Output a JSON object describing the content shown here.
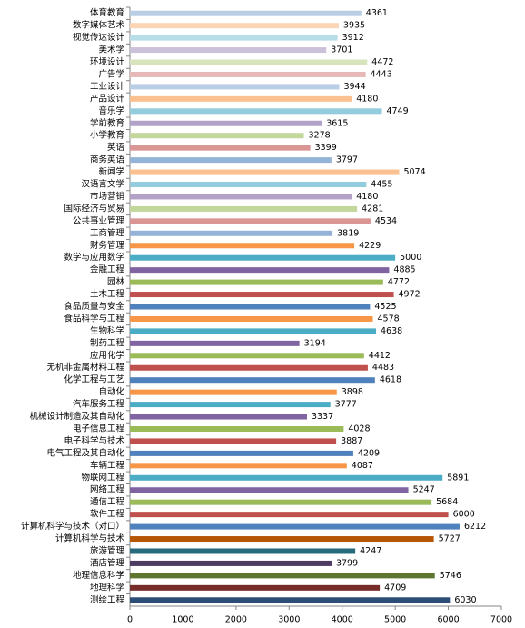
{
  "chart_data": {
    "type": "barh",
    "categories": [
      "体育教育",
      "数字媒体艺术",
      "视觉传达设计",
      "美术学",
      "环境设计",
      "广告学",
      "工业设计",
      "产品设计",
      "音乐学",
      "学前教育",
      "小学教育",
      "英语",
      "商务英语",
      "新闻学",
      "汉语言文学",
      "市场营销",
      "国际经济与贸易",
      "公共事业管理",
      "工商管理",
      "财务管理",
      "数学与应用数学",
      "金融工程",
      "园林",
      "土木工程",
      "食品质量与安全",
      "食品科学与工程",
      "生物科学",
      "制药工程",
      "应用化学",
      "无机非金属材料工程",
      "化学工程与工艺",
      "自动化",
      "汽车服务工程",
      "机械设计制造及其自动化",
      "电子信息工程",
      "电子科学与技术",
      "电气工程及其自动化",
      "车辆工程",
      "物联网工程",
      "网络工程",
      "通信工程",
      "软件工程",
      "计算机科学与技术（对口）",
      "计算机科学与技术",
      "旅游管理",
      "酒店管理",
      "地理信息科学",
      "地理科学",
      "测绘工程"
    ],
    "values": [
      4361,
      3935,
      3912,
      3701,
      4472,
      4443,
      3944,
      4180,
      4749,
      3615,
      3278,
      3399,
      3797,
      5074,
      4455,
      4180,
      4281,
      4534,
      3819,
      4229,
      5000,
      4885,
      4772,
      4972,
      4525,
      4578,
      4638,
      3194,
      4412,
      4483,
      4618,
      3898,
      3777,
      3337,
      4028,
      3887,
      4209,
      4087,
      5891,
      5247,
      5684,
      6000,
      6212,
      5727,
      4247,
      3799,
      5746,
      4709,
      6030
    ],
    "colors": [
      "#b9cde5",
      "#fcd5b5",
      "#b7dee8",
      "#ccc1da",
      "#d7e4bd",
      "#e6b9b8",
      "#b9cde5",
      "#fac090",
      "#93cddd",
      "#b3a2c7",
      "#c3d69b",
      "#d99694",
      "#95b3d7",
      "#fac090",
      "#93cddd",
      "#b3a2c7",
      "#c3d69b",
      "#d99694",
      "#95b3d7",
      "#f79646",
      "#4bacc6",
      "#8064a2",
      "#9bbb59",
      "#c0504d",
      "#4f81bd",
      "#f79646",
      "#4bacc6",
      "#8064a2",
      "#9bbb59",
      "#c0504d",
      "#4f81bd",
      "#f79646",
      "#4bacc6",
      "#8064a2",
      "#9bbb59",
      "#c0504d",
      "#4f81bd",
      "#f79646",
      "#4bacc6",
      "#8064a2",
      "#9bbb59",
      "#c0504d",
      "#4f81bd",
      "#b65708",
      "#276a7c",
      "#4d3b62",
      "#5f7530",
      "#772c2a",
      "#2c4d75"
    ],
    "xlim": [
      0,
      7000
    ],
    "xticks": [
      0,
      1000,
      2000,
      3000,
      4000,
      5000,
      6000,
      7000
    ]
  }
}
